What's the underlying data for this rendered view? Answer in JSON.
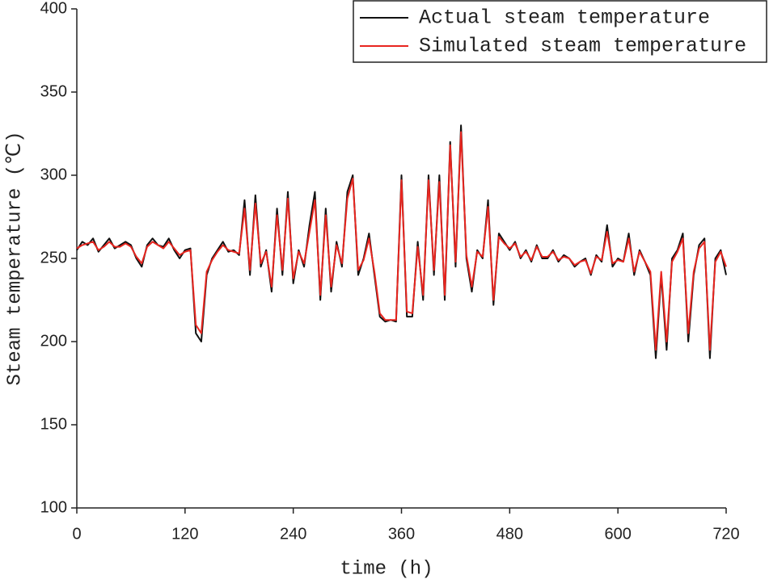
{
  "chart_data": {
    "type": "line",
    "x_label": "time (h)",
    "y_label": "Steam temperature (℃)",
    "x": [
      0,
      6,
      12,
      18,
      24,
      30,
      36,
      42,
      48,
      54,
      60,
      66,
      72,
      78,
      84,
      90,
      96,
      102,
      108,
      114,
      120,
      126,
      132,
      138,
      144,
      150,
      156,
      162,
      168,
      174,
      180,
      186,
      192,
      198,
      204,
      210,
      216,
      222,
      228,
      234,
      240,
      246,
      252,
      258,
      264,
      270,
      276,
      282,
      288,
      294,
      300,
      306,
      312,
      318,
      324,
      330,
      336,
      342,
      348,
      354,
      360,
      366,
      372,
      378,
      384,
      390,
      396,
      402,
      408,
      414,
      420,
      426,
      432,
      438,
      444,
      450,
      456,
      462,
      468,
      474,
      480,
      486,
      492,
      498,
      504,
      510,
      516,
      522,
      528,
      534,
      540,
      546,
      552,
      558,
      564,
      570,
      576,
      582,
      588,
      594,
      600,
      606,
      612,
      618,
      624,
      630,
      636,
      642,
      648,
      654,
      660,
      666,
      672,
      678,
      684,
      690,
      696,
      702,
      708,
      714,
      720
    ],
    "series": [
      {
        "name": "Actual steam temperature",
        "color": "#111111",
        "values": [
          255,
          260,
          258,
          262,
          254,
          258,
          262,
          256,
          258,
          260,
          258,
          250,
          245,
          258,
          262,
          258,
          257,
          262,
          255,
          250,
          255,
          256,
          205,
          200,
          240,
          250,
          255,
          260,
          254,
          255,
          252,
          285,
          240,
          288,
          245,
          255,
          230,
          280,
          240,
          290,
          235,
          255,
          245,
          270,
          290,
          225,
          280,
          230,
          260,
          245,
          290,
          300,
          240,
          250,
          265,
          240,
          215,
          212,
          213,
          212,
          300,
          215,
          215,
          260,
          225,
          300,
          240,
          300,
          225,
          320,
          245,
          330,
          250,
          230,
          255,
          250,
          285,
          222,
          265,
          260,
          255,
          260,
          250,
          255,
          248,
          258,
          250,
          250,
          255,
          248,
          252,
          250,
          245,
          248,
          250,
          240,
          252,
          248,
          270,
          245,
          250,
          248,
          265,
          240,
          255,
          248,
          240,
          190,
          240,
          195,
          250,
          255,
          265,
          200,
          240,
          258,
          262,
          190,
          250,
          255,
          240
        ]
      },
      {
        "name": "Simulated steam temperature",
        "color": "#e8251f",
        "values": [
          256,
          258,
          259,
          260,
          255,
          257,
          260,
          257,
          257,
          259,
          257,
          251,
          247,
          257,
          260,
          258,
          256,
          260,
          256,
          252,
          254,
          255,
          210,
          205,
          242,
          249,
          254,
          258,
          255,
          254,
          253,
          280,
          243,
          283,
          247,
          254,
          233,
          276,
          243,
          286,
          238,
          254,
          247,
          266,
          285,
          228,
          276,
          233,
          258,
          247,
          286,
          298,
          243,
          249,
          262,
          242,
          217,
          213,
          213,
          213,
          297,
          218,
          217,
          257,
          228,
          297,
          243,
          296,
          228,
          318,
          248,
          326,
          252,
          233,
          254,
          251,
          281,
          225,
          263,
          259,
          256,
          259,
          251,
          254,
          249,
          257,
          251,
          251,
          254,
          249,
          251,
          250,
          246,
          248,
          249,
          241,
          251,
          249,
          266,
          247,
          249,
          248,
          262,
          242,
          254,
          248,
          242,
          195,
          242,
          200,
          248,
          254,
          262,
          205,
          242,
          256,
          260,
          195,
          248,
          254,
          245
        ]
      }
    ],
    "xlim": [
      0,
      720
    ],
    "xticks": [
      0,
      120,
      240,
      360,
      480,
      600,
      720
    ],
    "ylim": [
      100,
      400
    ],
    "yticks": [
      100,
      150,
      200,
      250,
      300,
      350,
      400
    ],
    "legend": "top-right"
  }
}
